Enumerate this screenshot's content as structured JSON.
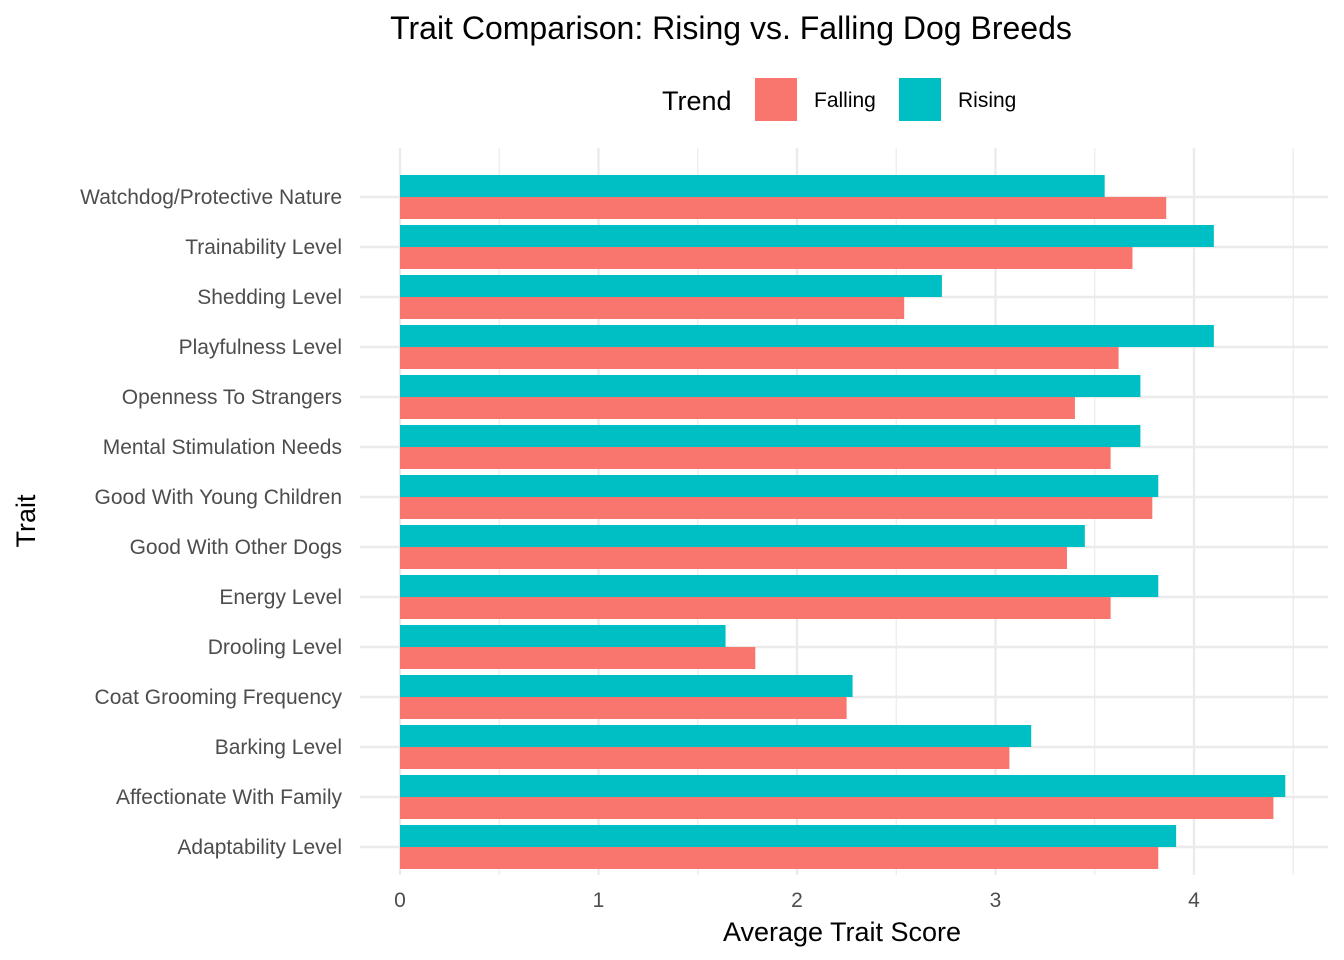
{
  "chart_data": {
    "type": "bar",
    "orientation": "horizontal",
    "title": "Trait Comparison: Rising vs. Falling Dog Breeds",
    "xlabel": "Average Trait Score",
    "ylabel": "Trait",
    "xlim": [
      0,
      4.6
    ],
    "x_ticks": [
      0,
      1,
      2,
      3,
      4
    ],
    "grid": true,
    "legend": {
      "title": "Trend",
      "position": "top"
    },
    "categories": [
      "Adaptability Level",
      "Affectionate With Family",
      "Barking Level",
      "Coat Grooming Frequency",
      "Drooling Level",
      "Energy Level",
      "Good With Other Dogs",
      "Good With Young Children",
      "Mental Stimulation Needs",
      "Openness To Strangers",
      "Playfulness Level",
      "Shedding Level",
      "Trainability Level",
      "Watchdog/Protective Nature"
    ],
    "series": [
      {
        "name": "Falling",
        "color": "#F8766D",
        "values": [
          3.82,
          4.4,
          3.07,
          2.25,
          1.79,
          3.58,
          3.36,
          3.79,
          3.58,
          3.4,
          3.62,
          2.54,
          3.69,
          3.86
        ]
      },
      {
        "name": "Rising",
        "color": "#00BFC4",
        "values": [
          3.91,
          4.46,
          3.18,
          2.28,
          1.64,
          3.82,
          3.45,
          3.82,
          3.73,
          3.73,
          4.1,
          2.73,
          4.1,
          3.55
        ]
      }
    ]
  }
}
